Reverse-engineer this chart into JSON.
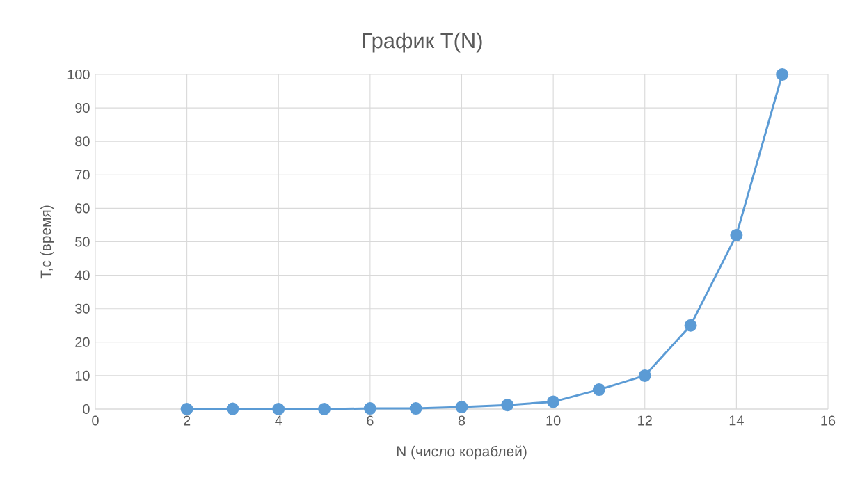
{
  "chart_data": {
    "type": "line",
    "title": "График T(N)",
    "xlabel": "N (число кораблей)",
    "ylabel": "T,c (время)",
    "x": [
      2,
      3,
      4,
      5,
      6,
      7,
      8,
      9,
      10,
      11,
      12,
      13,
      14,
      15
    ],
    "series": [
      {
        "color": "#5b9bd5",
        "values": [
          0,
          0.1,
          0,
          0,
          0.2,
          0.2,
          0.6,
          1.2,
          2.2,
          5.8,
          10,
          25,
          52,
          100
        ]
      }
    ],
    "xlim": [
      0,
      16
    ],
    "ylim": [
      0,
      100
    ],
    "xticks": [
      0,
      2,
      4,
      6,
      8,
      10,
      12,
      14,
      16
    ],
    "yticks": [
      0,
      10,
      20,
      30,
      40,
      50,
      60,
      70,
      80,
      90,
      100
    ],
    "grid": true,
    "marker": "circle",
    "line_style": "solid"
  }
}
